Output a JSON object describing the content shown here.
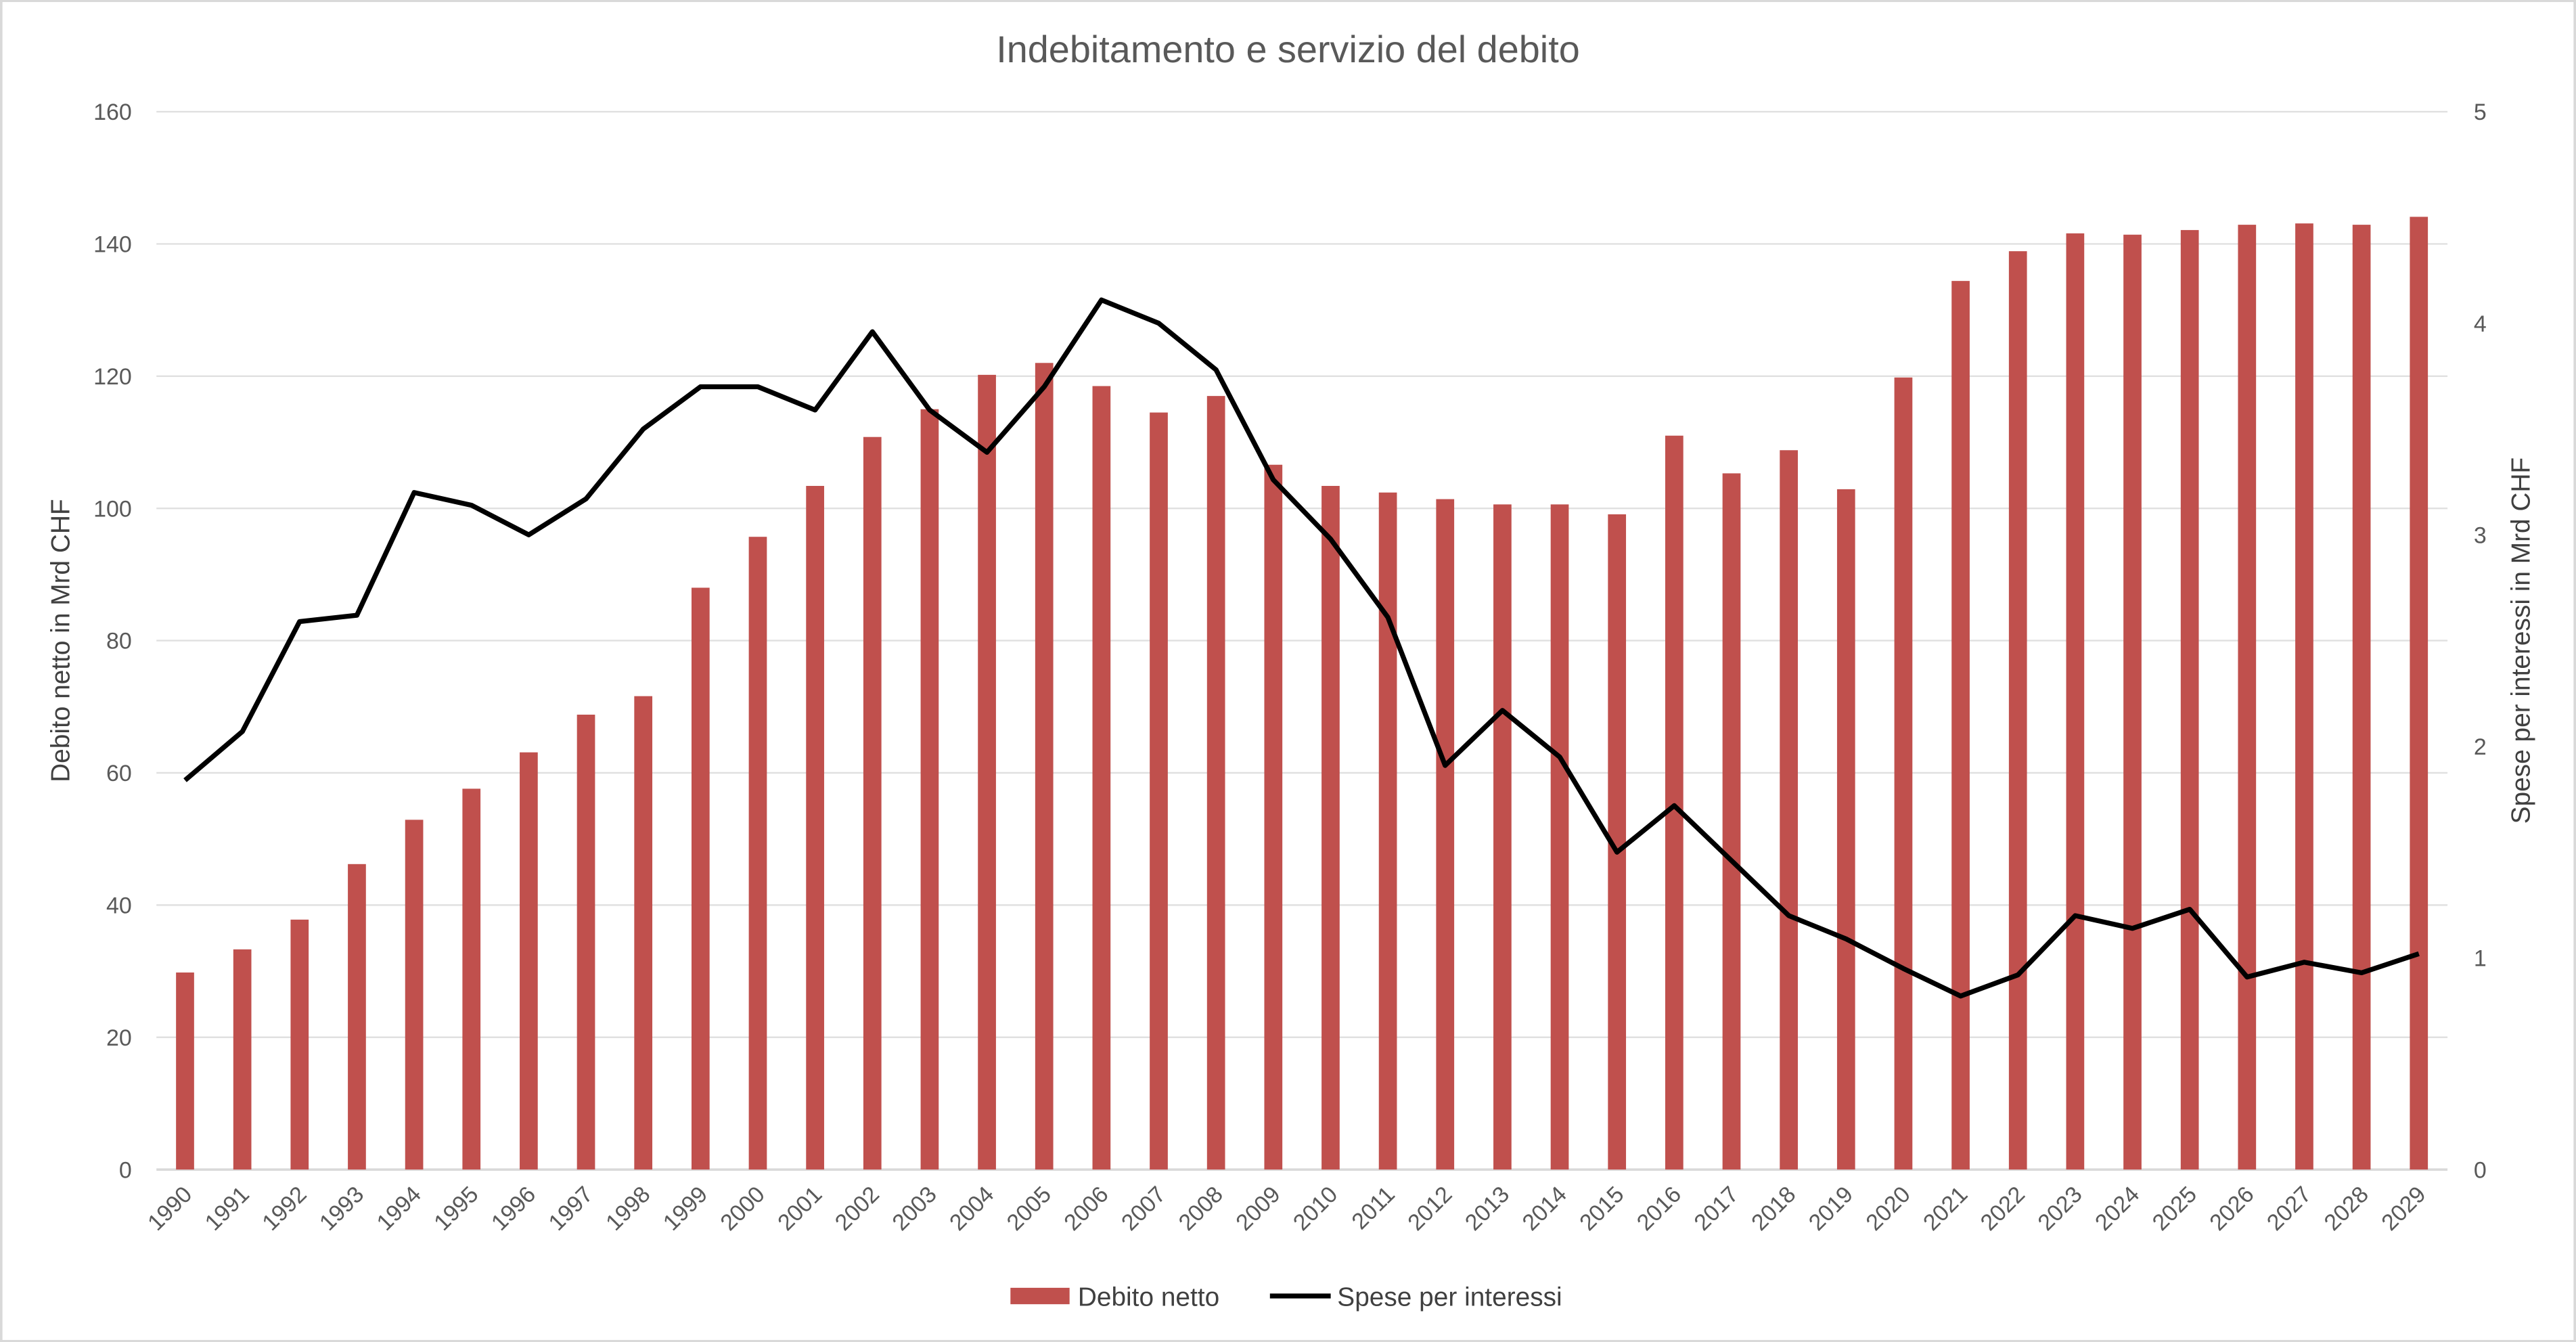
{
  "chart_data": {
    "type": "bar+line",
    "title": "Indebitamento e servizio del debito",
    "ylabel": "Debito netto in Mrd CHF",
    "y2label": "Spese per interessi in Mrd CHF",
    "ylim": [
      0,
      160
    ],
    "yticks": [
      0,
      20,
      40,
      60,
      80,
      100,
      120,
      140,
      160
    ],
    "y2lim": [
      0,
      5
    ],
    "y2ticks": [
      0,
      1,
      2,
      3,
      4,
      5
    ],
    "grid": true,
    "legend_position": "bottom",
    "categories": [
      "1990",
      "1991",
      "1992",
      "1993",
      "1994",
      "1995",
      "1996",
      "1997",
      "1998",
      "1999",
      "2000",
      "2001",
      "2002",
      "2003",
      "2004",
      "2005",
      "2006",
      "2007",
      "2008",
      "2009",
      "2010",
      "2011",
      "2012",
      "2013",
      "2014",
      "2015",
      "2016",
      "2017",
      "2018",
      "2019",
      "2020",
      "2021",
      "2022",
      "2023",
      "2024",
      "2025",
      "2026",
      "2027",
      "2028",
      "2029"
    ],
    "series": [
      {
        "name": "Debito netto",
        "type": "bar",
        "axis": "left",
        "color": "#C0504D",
        "values": [
          29.8,
          33.3,
          37.8,
          46.2,
          52.9,
          57.6,
          63.1,
          68.8,
          71.6,
          88.0,
          95.7,
          103.4,
          110.8,
          115.0,
          120.2,
          122.0,
          118.5,
          114.5,
          117.0,
          106.6,
          103.4,
          102.4,
          101.4,
          100.6,
          100.6,
          99.1,
          111.0,
          105.3,
          108.8,
          102.9,
          119.8,
          134.4,
          138.9,
          141.6,
          141.4,
          142.1,
          142.9,
          143.1,
          142.9,
          144.1
        ]
      },
      {
        "name": "Spese per interessi",
        "type": "line",
        "axis": "right",
        "color": "#000000",
        "values": [
          1.84,
          2.07,
          2.59,
          2.62,
          3.2,
          3.14,
          3.0,
          3.17,
          3.5,
          3.7,
          3.7,
          3.59,
          3.96,
          3.59,
          3.39,
          3.7,
          4.11,
          4.0,
          3.78,
          3.26,
          2.98,
          2.61,
          1.91,
          2.17,
          1.95,
          1.5,
          1.72,
          1.46,
          1.2,
          1.09,
          0.95,
          0.82,
          0.92,
          1.2,
          1.14,
          1.23,
          0.91,
          0.98,
          0.93,
          1.02
        ]
      }
    ]
  }
}
